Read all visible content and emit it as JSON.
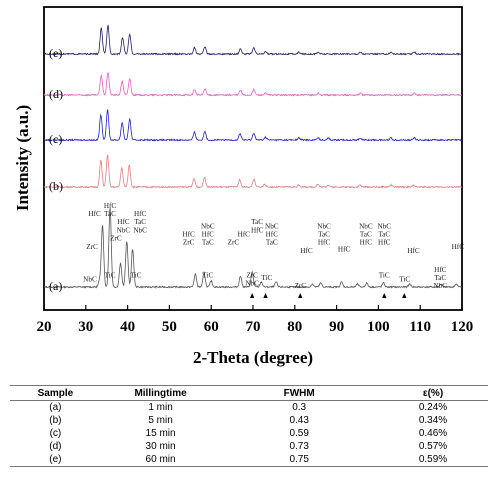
{
  "chart_data": {
    "type": "line",
    "xlabel": "2-Theta (degree)",
    "ylabel": "Intensity (a.u.)",
    "xlim": [
      20,
      120
    ],
    "xticks": [
      20,
      30,
      40,
      50,
      60,
      70,
      80,
      90,
      100,
      110,
      120
    ],
    "grid": false,
    "series": [
      {
        "name": "(a)",
        "color": "#555555",
        "offset": 0,
        "scale": 1.0,
        "peaks": [
          [
            33.3,
            6
          ],
          [
            34.0,
            62
          ],
          [
            35.8,
            80
          ],
          [
            38.3,
            24
          ],
          [
            39.8,
            46
          ],
          [
            41.2,
            38
          ],
          [
            56.2,
            13
          ],
          [
            58.3,
            14
          ],
          [
            60.0,
            6
          ],
          [
            67.0,
            11
          ],
          [
            69.8,
            15
          ],
          [
            72.0,
            5
          ],
          [
            75.5,
            5
          ],
          [
            84.2,
            3
          ],
          [
            86.2,
            4
          ],
          [
            91.2,
            5
          ],
          [
            95.0,
            3
          ],
          [
            97.2,
            4
          ],
          [
            101.2,
            4
          ],
          [
            107.5,
            3
          ],
          [
            115.0,
            3
          ],
          [
            118.6,
            3
          ]
        ]
      },
      {
        "name": "(b)",
        "color": "#e08080",
        "offset": 100,
        "scale": 0.7,
        "peaks": [
          [
            33.6,
            38
          ],
          [
            35.2,
            46
          ],
          [
            38.6,
            27
          ],
          [
            40.4,
            32
          ],
          [
            55.9,
            12
          ],
          [
            58.4,
            14
          ],
          [
            66.8,
            10
          ],
          [
            70.2,
            11
          ],
          [
            72.8,
            4
          ],
          [
            81.0,
            3
          ],
          [
            85.5,
            4
          ],
          [
            88.0,
            3
          ],
          [
            95.6,
            3
          ],
          [
            103.0,
            3
          ],
          [
            108.5,
            3
          ]
        ]
      },
      {
        "name": "(c)",
        "color": "#2020c0",
        "offset": 147,
        "scale": 0.7,
        "peaks": [
          [
            33.6,
            36
          ],
          [
            35.2,
            43
          ],
          [
            38.7,
            25
          ],
          [
            40.5,
            30
          ],
          [
            56.0,
            11
          ],
          [
            58.5,
            12
          ],
          [
            66.9,
            9
          ],
          [
            70.2,
            10
          ],
          [
            73.0,
            4
          ],
          [
            81.0,
            3
          ],
          [
            85.6,
            3
          ],
          [
            88.0,
            3
          ],
          [
            95.7,
            3
          ],
          [
            103.0,
            3
          ],
          [
            108.6,
            3
          ]
        ]
      },
      {
        "name": "(d)",
        "color": "#e060c0",
        "offset": 192,
        "scale": 0.6,
        "peaks": [
          [
            33.7,
            33
          ],
          [
            35.3,
            38
          ],
          [
            38.7,
            23
          ],
          [
            40.5,
            27
          ],
          [
            56.0,
            9
          ],
          [
            58.5,
            10
          ],
          [
            67.0,
            8
          ],
          [
            70.2,
            9
          ],
          [
            73.0,
            3
          ],
          [
            85.6,
            3
          ],
          [
            95.7,
            3
          ],
          [
            108.6,
            3
          ]
        ]
      },
      {
        "name": "(e)",
        "color": "#202060",
        "offset": 233,
        "scale": 0.6,
        "peaks": [
          [
            33.7,
            43
          ],
          [
            35.3,
            48
          ],
          [
            38.8,
            28
          ],
          [
            40.5,
            33
          ],
          [
            56.0,
            11
          ],
          [
            58.5,
            12
          ],
          [
            67.0,
            9
          ],
          [
            70.2,
            10
          ],
          [
            73.0,
            4
          ],
          [
            81.0,
            3
          ],
          [
            85.6,
            3
          ],
          [
            95.7,
            3
          ],
          [
            103.0,
            3
          ],
          [
            108.6,
            3
          ]
        ]
      }
    ],
    "annotations": [
      {
        "text": "HfC",
        "x": 32.1,
        "row": 0
      },
      {
        "text": "HfC",
        "x": 35.8,
        "row": -1
      },
      {
        "text": "TaC",
        "x": 35.8,
        "row": 0
      },
      {
        "text": "ZrC",
        "x": 31.5,
        "row": 4
      },
      {
        "text": "ZrC",
        "x": 37.2,
        "row": 3
      },
      {
        "text": "HfC",
        "x": 39.0,
        "row": 1
      },
      {
        "text": "NbC",
        "x": 39.0,
        "row": 2
      },
      {
        "text": "HfC",
        "x": 43.0,
        "row": 0
      },
      {
        "text": "TaC",
        "x": 43.0,
        "row": 1
      },
      {
        "text": "NbC",
        "x": 43.0,
        "row": 2
      },
      {
        "text": "NbC",
        "x": 31.0,
        "row": 8
      },
      {
        "text": "TiC",
        "x": 35.8,
        "row": 7.5
      },
      {
        "text": "TiC",
        "x": 42.0,
        "row": 7.5
      },
      {
        "text": "HfC",
        "x": 54.6,
        "row": 2.5
      },
      {
        "text": "ZrC",
        "x": 54.6,
        "row": 3.5
      },
      {
        "text": "NbC",
        "x": 59.2,
        "row": 1.5
      },
      {
        "text": "HfC",
        "x": 59.2,
        "row": 2.5
      },
      {
        "text": "TaC",
        "x": 59.2,
        "row": 3.5
      },
      {
        "text": "TiC",
        "x": 59.2,
        "row": 7.5
      },
      {
        "text": "ZrC",
        "x": 65.3,
        "row": 3.5
      },
      {
        "text": "HfC",
        "x": 67.8,
        "row": 2.5
      },
      {
        "text": "TaC",
        "x": 71.0,
        "row": 1
      },
      {
        "text": "HfC",
        "x": 71.0,
        "row": 2
      },
      {
        "text": "NbC",
        "x": 74.5,
        "row": 1.5
      },
      {
        "text": "HfC",
        "x": 74.5,
        "row": 2.5
      },
      {
        "text": "TaC",
        "x": 74.5,
        "row": 3.5
      },
      {
        "text": "ZrC",
        "x": 69.8,
        "row": 7.5
      },
      {
        "text": "NbC",
        "x": 69.8,
        "row": 8.5
      },
      {
        "text": "TiC",
        "x": 73.3,
        "row": 7.8
      },
      {
        "text": "HfC",
        "x": 82.8,
        "row": 4.5
      },
      {
        "text": "ZrC",
        "x": 81.3,
        "row": 8.8
      },
      {
        "text": "NbC",
        "x": 87.0,
        "row": 1.5
      },
      {
        "text": "TaC",
        "x": 87.0,
        "row": 2.5
      },
      {
        "text": "HfC",
        "x": 87.0,
        "row": 3.5
      },
      {
        "text": "HfC",
        "x": 91.8,
        "row": 4.3
      },
      {
        "text": "NbC",
        "x": 97.0,
        "row": 1.5
      },
      {
        "text": "TaC",
        "x": 97.0,
        "row": 2.5
      },
      {
        "text": "HfC",
        "x": 97.0,
        "row": 3.5
      },
      {
        "text": "NbC",
        "x": 101.4,
        "row": 1.5
      },
      {
        "text": "TaC",
        "x": 101.4,
        "row": 2.5
      },
      {
        "text": "HfC",
        "x": 101.4,
        "row": 3.5
      },
      {
        "text": "TiC",
        "x": 101.4,
        "row": 7.5
      },
      {
        "text": "TiC",
        "x": 106.3,
        "row": 8.0
      },
      {
        "text": "HfC",
        "x": 108.4,
        "row": 4.5
      },
      {
        "text": "HfC",
        "x": 119.0,
        "row": 4.0
      },
      {
        "text": "HfC",
        "x": 114.8,
        "row": 6.8
      },
      {
        "text": "TaC",
        "x": 114.8,
        "row": 7.8
      },
      {
        "text": "NbC",
        "x": 114.8,
        "row": 8.8
      }
    ],
    "markers": [
      {
        "x": 69.8,
        "dir": "up"
      },
      {
        "x": 73.0,
        "dir": "up"
      },
      {
        "x": 81.3,
        "dir": "up"
      },
      {
        "x": 101.4,
        "dir": "up"
      },
      {
        "x": 106.2,
        "dir": "up"
      }
    ]
  },
  "table": {
    "headers": [
      "Sample",
      "Millingtime",
      "FWHM",
      "ε(%)"
    ],
    "rows": [
      [
        "(a)",
        "1   min",
        "0.3",
        "0.24%"
      ],
      [
        "(b)",
        "5   min",
        "0.43",
        "0.34%"
      ],
      [
        "(c)",
        "15   min",
        "0.59",
        "0.46%"
      ],
      [
        "(d)",
        "30   min",
        "0.73",
        "0.57%"
      ],
      [
        "(e)",
        "60   min",
        "0.75",
        "0.59%"
      ]
    ]
  }
}
